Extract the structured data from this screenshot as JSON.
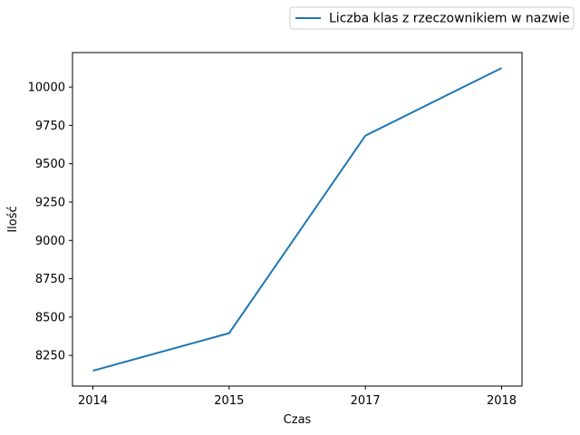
{
  "chart_data": {
    "type": "line",
    "x": [
      "2014",
      "2015",
      "2017",
      "2018"
    ],
    "series": [
      {
        "name": "Liczba klas z rzeczownikiem w nazwie",
        "values": [
          8150,
          8395,
          9683,
          10124
        ],
        "color": "#1f77b4"
      }
    ],
    "xlabel": "Czas",
    "ylabel": "Ilość",
    "ylim": [
      8050,
      10225
    ],
    "yticks": [
      8250,
      8500,
      8750,
      9000,
      9250,
      9500,
      9750,
      10000
    ],
    "ytick_labels": [
      "8250",
      "8500",
      "8750",
      "9000",
      "9250",
      "9500",
      "9750",
      "10000"
    ],
    "grid": false,
    "legend_position": "top-right (outside plot)"
  }
}
